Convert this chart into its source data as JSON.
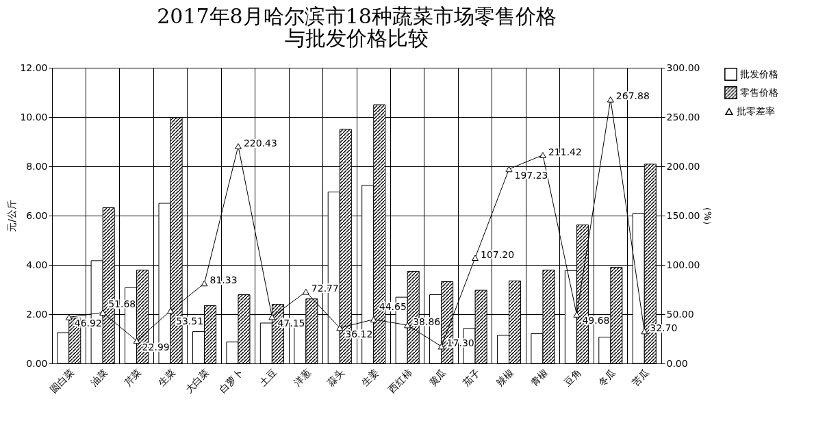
{
  "chart_data": {
    "type": "bar",
    "title": "2017年8月哈尔滨市18种蔬菜市场零售价格与批发价格比较",
    "ylabel": "元/公斤",
    "y2label": "（%）",
    "categories": [
      "圆白菜",
      "油菜",
      "芹菜",
      "生菜",
      "大白菜",
      "白萝卜",
      "土豆",
      "洋葱",
      "蒜头",
      "生姜",
      "西红柿",
      "黄瓜",
      "茄子",
      "辣椒",
      "青椒",
      "豆角",
      "冬瓜",
      "苦瓜"
    ],
    "series": [
      {
        "name": "批发价格",
        "color": "#ffffff",
        "values": [
          1.25,
          4.17,
          3.08,
          6.5,
          1.29,
          0.87,
          1.64,
          1.52,
          6.96,
          7.23,
          2.69,
          2.79,
          1.42,
          1.14,
          1.21,
          3.77,
          1.07,
          6.09
        ]
      },
      {
        "name": "零售价格",
        "color": "#000000",
        "values": [
          1.84,
          6.32,
          3.79,
          9.97,
          2.35,
          2.79,
          2.4,
          2.62,
          9.5,
          10.5,
          3.74,
          3.32,
          2.97,
          3.35,
          3.79,
          5.62,
          3.9,
          8.09
        ]
      },
      {
        "name": "批零差率",
        "type": "line",
        "axis": "y2",
        "color": "#000000",
        "values": [
          46.92,
          51.68,
          22.99,
          53.51,
          81.33,
          220.43,
          47.15,
          72.77,
          36.12,
          44.65,
          38.86,
          17.3,
          107.2,
          197.23,
          211.42,
          49.68,
          267.88,
          32.7
        ],
        "value_labels": [
          "46.92",
          "51.68",
          "22.99",
          "53.51",
          "81.33",
          "220.43",
          "47.15",
          "72.77",
          "36.12",
          "44.65",
          "38.86",
          "17.30",
          "107.20",
          "197.23",
          "211.42",
          "49.68",
          "267.88",
          "32.70"
        ]
      }
    ],
    "ylim": [
      0,
      12
    ],
    "yticks": [
      {
        "value": 0,
        "label": "0.00"
      },
      {
        "value": 2,
        "label": "2.00"
      },
      {
        "value": 4,
        "label": "4.00"
      },
      {
        "value": 6,
        "label": "6.00"
      },
      {
        "value": 8,
        "label": "8.00"
      },
      {
        "value": 10,
        "label": "10.00"
      },
      {
        "value": 12,
        "label": "12.00"
      }
    ],
    "y2lim": [
      0,
      300
    ],
    "y2ticks": [
      {
        "value": 0,
        "label": "0.00"
      },
      {
        "value": 50,
        "label": "50.00"
      },
      {
        "value": 100,
        "label": "100.00"
      },
      {
        "value": 150,
        "label": "150.00"
      },
      {
        "value": 200,
        "label": "200.00"
      },
      {
        "value": 250,
        "label": "250.00"
      },
      {
        "value": 300,
        "label": "300.00"
      }
    ],
    "grid": true,
    "legend": "right",
    "marker": "triangle"
  }
}
